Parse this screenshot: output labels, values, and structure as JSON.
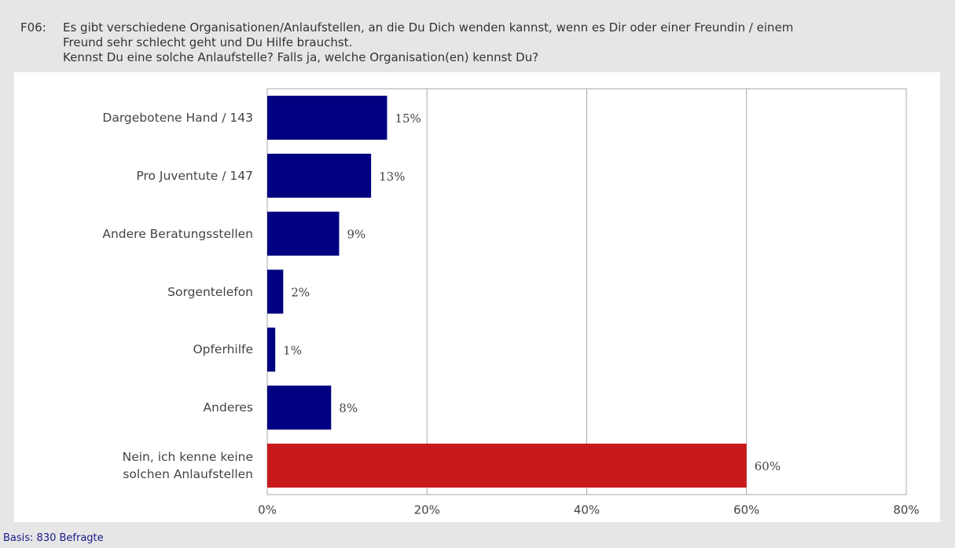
{
  "label": "F06:",
  "chart_data": {
    "type": "barh",
    "title": "Es gibt verschiedene Organisationen/Anlaufstellen, an die Du Dich wenden kannst, wenn es Dir oder einer Freundin / einem\nFreund sehr schlecht geht und Du Hilfe brauchst.\nKennst Du eine solche Anlaufstelle? Falls ja, welche Organisation(en) kennst Du?",
    "categories": [
      "Dargebotene Hand / 143",
      "Pro Juventute / 147",
      "Andere Beratungsstellen",
      "Sorgentelefon",
      "Opferhilfe",
      "Anderes",
      "Nein, ich kenne keine\nsolchen Anlaufstellen"
    ],
    "values": [
      15,
      13,
      9,
      2,
      1,
      8,
      60
    ],
    "value_labels": [
      "15%",
      "13%",
      "9%",
      "2%",
      "1%",
      "8%",
      "60%"
    ],
    "colors": [
      "#000080",
      "#000080",
      "#000080",
      "#000080",
      "#000080",
      "#000080",
      "#c8191a"
    ],
    "xlim": [
      0,
      80
    ],
    "xticks": [
      {
        "value": 0,
        "label": "0%"
      },
      {
        "value": 20,
        "label": "20%"
      },
      {
        "value": 40,
        "label": "40%"
      },
      {
        "value": 60,
        "label": "60%"
      },
      {
        "value": 80,
        "label": "80%"
      }
    ],
    "grid": true
  },
  "footer": "Basis: 830 Befragte"
}
